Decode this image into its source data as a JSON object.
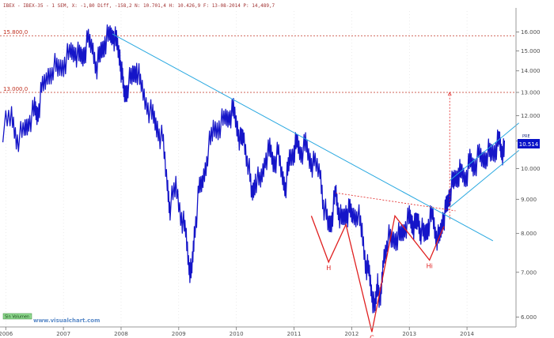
{
  "header": {
    "text": "IBEX - IBEX-35 - 1 SEM, X: -1,80 Diff, -158,2 N: 10.701,4 H: 10.426,9 F: 13-08-2014 P: 14,489,7",
    "symbol": "IBEX"
  },
  "watermark": "www.visualchart.com",
  "corner_button": "Sin Volumen",
  "axis_top_button": "PRE",
  "price_tag": "10.514",
  "colors": {
    "price": "#1515c8",
    "trendline": "#28a8e0",
    "pattern": "#e02020",
    "level": "#c03020",
    "grid": "#d8d8d8",
    "price_tag_bg": "#0a14c8"
  },
  "chart_data": {
    "type": "line",
    "title": "",
    "xlabel": "",
    "ylabel": "",
    "log_scale": true,
    "grid": false,
    "ylim": [
      5800,
      17200
    ],
    "xlim": [
      2005.9,
      2014.85
    ],
    "yticks": [
      6000,
      7000,
      8000,
      9000,
      10000,
      11000,
      12000,
      13000,
      14000,
      15000,
      16000
    ],
    "ytick_labels": [
      "6.000",
      "7.000",
      "8.000",
      "9.000",
      "10.000",
      "11.000",
      "12.000",
      "13.000",
      "14.000",
      "15.000",
      "16.000"
    ],
    "xticks": [
      2006,
      2007,
      2008,
      2009,
      2010,
      2011,
      2012,
      2013,
      2014
    ],
    "xtick_labels": [
      "2006",
      "2007",
      "2008",
      "2009",
      "2010",
      "2011",
      "2012",
      "2013",
      "2014"
    ],
    "series": [
      {
        "values": [
          [
            2005.95,
            11500
          ],
          [
            2006.1,
            11950
          ],
          [
            2006.2,
            11100
          ],
          [
            2006.32,
            11350
          ],
          [
            2006.4,
            11800
          ],
          [
            2006.5,
            12200
          ],
          [
            2006.55,
            12050
          ],
          [
            2006.62,
            13000
          ],
          [
            2006.72,
            13700
          ],
          [
            2006.82,
            14250
          ],
          [
            2006.92,
            14050
          ],
          [
            2007.02,
            14500
          ],
          [
            2007.12,
            14850
          ],
          [
            2007.2,
            15050
          ],
          [
            2007.28,
            14600
          ],
          [
            2007.35,
            14800
          ],
          [
            2007.42,
            15450
          ],
          [
            2007.5,
            15200
          ],
          [
            2007.58,
            14300
          ],
          [
            2007.65,
            14900
          ],
          [
            2007.72,
            15550
          ],
          [
            2007.8,
            15750
          ],
          [
            2007.86,
            15950
          ],
          [
            2007.92,
            15350
          ],
          [
            2007.98,
            14700
          ],
          [
            2008.02,
            13600
          ],
          [
            2008.06,
            12900
          ],
          [
            2008.12,
            13400
          ],
          [
            2008.2,
            13750
          ],
          [
            2008.27,
            14200
          ],
          [
            2008.35,
            13200
          ],
          [
            2008.45,
            12500
          ],
          [
            2008.55,
            11900
          ],
          [
            2008.63,
            11500
          ],
          [
            2008.72,
            11000
          ],
          [
            2008.8,
            9500
          ],
          [
            2008.85,
            8800
          ],
          [
            2008.95,
            9400
          ],
          [
            2009.05,
            8500
          ],
          [
            2009.12,
            8000
          ],
          [
            2009.18,
            7200
          ],
          [
            2009.22,
            6900
          ],
          [
            2009.27,
            8000
          ],
          [
            2009.35,
            9200
          ],
          [
            2009.42,
            9600
          ],
          [
            2009.5,
            10600
          ],
          [
            2009.6,
            11400
          ],
          [
            2009.7,
            11650
          ],
          [
            2009.8,
            11800
          ],
          [
            2009.88,
            12050
          ],
          [
            2009.95,
            12150
          ],
          [
            2010.02,
            11500
          ],
          [
            2010.08,
            10900
          ],
          [
            2010.12,
            11200
          ],
          [
            2010.2,
            10300
          ],
          [
            2010.27,
            9100
          ],
          [
            2010.33,
            9700
          ],
          [
            2010.42,
            9500
          ],
          [
            2010.5,
            10400
          ],
          [
            2010.58,
            10600
          ],
          [
            2010.65,
            10200
          ],
          [
            2010.72,
            10500
          ],
          [
            2010.8,
            9700
          ],
          [
            2010.86,
            9500
          ],
          [
            2010.92,
            10300
          ],
          [
            2011.0,
            10700
          ],
          [
            2011.05,
            10900
          ],
          [
            2011.12,
            10600
          ],
          [
            2011.2,
            10800
          ],
          [
            2011.28,
            10300
          ],
          [
            2011.35,
            10100
          ],
          [
            2011.45,
            9900
          ],
          [
            2011.52,
            8800
          ],
          [
            2011.6,
            8200
          ],
          [
            2011.66,
            8500
          ],
          [
            2011.72,
            9200
          ],
          [
            2011.77,
            8700
          ],
          [
            2011.83,
            8300
          ],
          [
            2011.9,
            8600
          ],
          [
            2011.96,
            8600
          ],
          [
            2012.02,
            8500
          ],
          [
            2012.1,
            8650
          ],
          [
            2012.18,
            8000
          ],
          [
            2012.25,
            7200
          ],
          [
            2012.3,
            7000
          ],
          [
            2012.35,
            6550
          ],
          [
            2012.4,
            6100
          ],
          [
            2012.45,
            6800
          ],
          [
            2012.5,
            6250
          ],
          [
            2012.55,
            7300
          ],
          [
            2012.62,
            7900
          ],
          [
            2012.7,
            7800
          ],
          [
            2012.78,
            7950
          ],
          [
            2012.85,
            7900
          ],
          [
            2012.92,
            8200
          ],
          [
            2013.0,
            8400
          ],
          [
            2013.05,
            8300
          ],
          [
            2013.1,
            8150
          ],
          [
            2013.15,
            8400
          ],
          [
            2013.2,
            8100
          ],
          [
            2013.27,
            7950
          ],
          [
            2013.33,
            8300
          ],
          [
            2013.4,
            8500
          ],
          [
            2013.46,
            8000
          ],
          [
            2013.52,
            7800
          ],
          [
            2013.58,
            8400
          ],
          [
            2013.63,
            8600
          ],
          [
            2013.68,
            9000
          ],
          [
            2013.72,
            9400
          ],
          [
            2013.78,
            9600
          ],
          [
            2013.85,
            9900
          ],
          [
            2013.9,
            9800
          ],
          [
            2013.98,
            9750
          ],
          [
            2014.05,
            10200
          ],
          [
            2014.12,
            10100
          ],
          [
            2014.2,
            10400
          ],
          [
            2014.28,
            10300
          ],
          [
            2014.35,
            10600
          ],
          [
            2014.42,
            10500
          ],
          [
            2014.5,
            10800
          ],
          [
            2014.56,
            11000
          ],
          [
            2014.6,
            10700
          ],
          [
            2014.65,
            10514
          ]
        ]
      }
    ],
    "annotations": [
      {
        "type": "hline",
        "y": 15800,
        "label": "15.800,0",
        "style": "dotted"
      },
      {
        "type": "hline",
        "y": 13000,
        "label": "13.000,0",
        "style": "dotted"
      },
      {
        "type": "trendline",
        "from": [
          2007.85,
          15900
        ],
        "to": [
          2014.45,
          7800
        ]
      },
      {
        "type": "channel_upper",
        "from": [
          2013.7,
          9600
        ],
        "to": [
          2014.9,
          11700
        ]
      },
      {
        "type": "channel_lower",
        "from": [
          2013.7,
          8750
        ],
        "to": [
          2014.9,
          10650
        ]
      },
      {
        "type": "neckline",
        "from": [
          2011.72,
          9200
        ],
        "to": [
          2013.8,
          8650
        ],
        "style": "dotted"
      },
      {
        "type": "target",
        "x": 2013.7,
        "from": 8400,
        "to": 13000,
        "style": "dotted"
      },
      {
        "type": "head_shoulders",
        "points": [
          [
            2011.3,
            8500
          ],
          [
            2011.6,
            7250
          ],
          [
            2011.9,
            8250
          ],
          [
            2012.35,
            5700
          ],
          [
            2012.75,
            8500
          ],
          [
            2013.35,
            7300
          ],
          [
            2013.6,
            8200
          ]
        ]
      },
      {
        "type": "label",
        "text": "H",
        "at": [
          2011.6,
          7250
        ]
      },
      {
        "type": "label",
        "text": "C",
        "at": [
          2012.35,
          5700
        ]
      },
      {
        "type": "label",
        "text": "Hi",
        "at": [
          2013.35,
          7300
        ]
      }
    ]
  }
}
